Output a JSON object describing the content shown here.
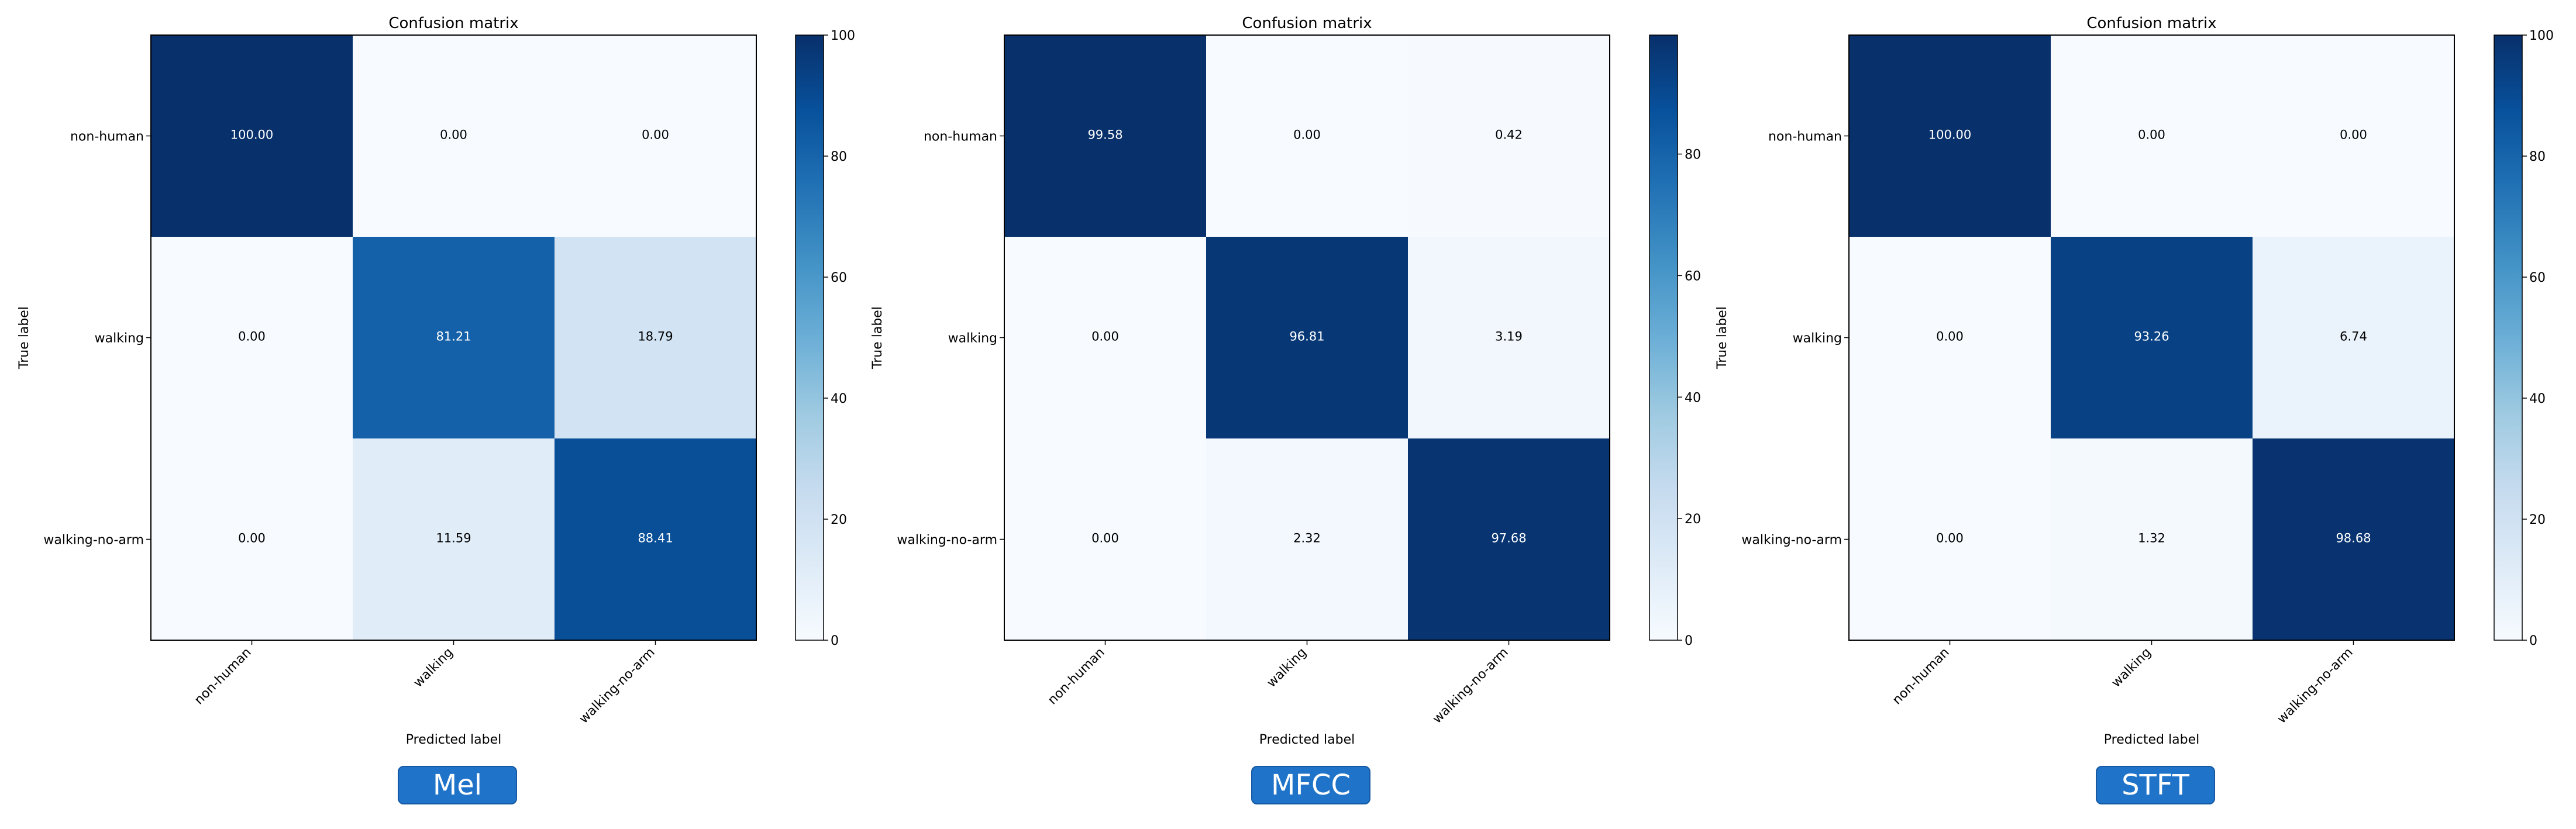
{
  "chart_data": [
    {
      "type": "heatmap",
      "title": "Confusion matrix",
      "xlabel": "Predicted label",
      "ylabel": "True label",
      "categories": [
        "non-human",
        "walking",
        "walking-no-arm"
      ],
      "values": [
        [
          100.0,
          0.0,
          0.0
        ],
        [
          0.0,
          81.21,
          18.79
        ],
        [
          0.0,
          11.59,
          88.41
        ]
      ],
      "value_labels": [
        [
          "100.00",
          "0.00",
          "0.00"
        ],
        [
          "0.00",
          "81.21",
          "18.79"
        ],
        [
          "0.00",
          "11.59",
          "88.41"
        ]
      ],
      "colorbar": {
        "range": [
          0,
          100
        ],
        "ticks": [
          0,
          20,
          40,
          60,
          80,
          100
        ]
      },
      "badge": "Mel"
    },
    {
      "type": "heatmap",
      "title": "Confusion matrix",
      "xlabel": "Predicted label",
      "ylabel": "True label",
      "categories": [
        "non-human",
        "walking",
        "walking-no-arm"
      ],
      "values": [
        [
          99.58,
          0.0,
          0.42
        ],
        [
          0.0,
          96.81,
          3.19
        ],
        [
          0.0,
          2.32,
          97.68
        ]
      ],
      "value_labels": [
        [
          "99.58",
          "0.00",
          "0.42"
        ],
        [
          "0.00",
          "96.81",
          "3.19"
        ],
        [
          "0.00",
          "2.32",
          "97.68"
        ]
      ],
      "colorbar": {
        "range": [
          0,
          99.58
        ],
        "ticks": [
          0,
          20,
          40,
          60,
          80
        ]
      },
      "badge": "MFCC"
    },
    {
      "type": "heatmap",
      "title": "Confusion matrix",
      "xlabel": "Predicted label",
      "ylabel": "True label",
      "categories": [
        "non-human",
        "walking",
        "walking-no-arm"
      ],
      "values": [
        [
          100.0,
          0.0,
          0.0
        ],
        [
          0.0,
          93.26,
          6.74
        ],
        [
          0.0,
          1.32,
          98.68
        ]
      ],
      "value_labels": [
        [
          "100.00",
          "0.00",
          "0.00"
        ],
        [
          "0.00",
          "93.26",
          "6.74"
        ],
        [
          "0.00",
          "1.32",
          "98.68"
        ]
      ],
      "colorbar": {
        "range": [
          0,
          100
        ],
        "ticks": [
          0,
          20,
          40,
          60,
          80,
          100
        ]
      },
      "badge": "STFT"
    }
  ]
}
